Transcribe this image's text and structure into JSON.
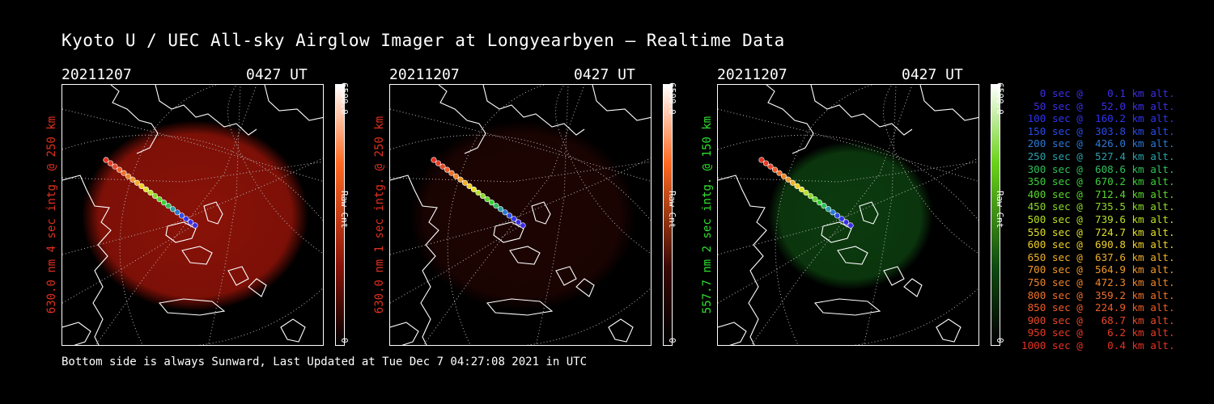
{
  "title": "Kyoto U / UEC All-sky Airglow Imager at Longyearbyen — Realtime Data",
  "footer": "Bottom side is always Sunward, Last Updated at Tue Dec  7 04:27:08 2021 in UTC",
  "panels": [
    {
      "date": "20211207",
      "time": "0427 UT",
      "ylabel": "630.0 nm 4 sec intg. @ 250 km",
      "ylabel_color": "#e0301e",
      "cbar_max": "6500.0",
      "cbar_min": "0",
      "cbar_label": "Raw Cnt",
      "color": "#ff6a22",
      "glow": "#8a1208",
      "glow_intensity": 1.0
    },
    {
      "date": "20211207",
      "time": "0427 UT",
      "ylabel": "630.0 nm 1 sec intg. @ 250 km",
      "ylabel_color": "#e0301e",
      "cbar_max": "6500.0",
      "cbar_min": "0",
      "cbar_label": "Raw Cnt",
      "color": "#ff6a22",
      "glow": "#3a0805",
      "glow_intensity": 0.5
    },
    {
      "date": "20211207",
      "time": "0427 UT",
      "ylabel": "557.7 nm 2 sec intg. @ 150 km",
      "ylabel_color": "#2ee02e",
      "cbar_max": "6500.0",
      "cbar_min": "0",
      "cbar_label": "Raw Cnt",
      "color": "#6bd21a",
      "glow": "#0f4a12",
      "glow_intensity": 0.8
    }
  ],
  "legend": [
    {
      "text": "   0 sec @    0.1 km alt.",
      "color": "#3b2ee8"
    },
    {
      "text": "  50 sec @   52.0 km alt.",
      "color": "#3b2ee8"
    },
    {
      "text": " 100 sec @  160.2 km alt.",
      "color": "#2f33f0"
    },
    {
      "text": " 150 sec @  303.8 km alt.",
      "color": "#2a4ce8"
    },
    {
      "text": " 200 sec @  426.0 km alt.",
      "color": "#2a78d8"
    },
    {
      "text": " 250 sec @  527.4 km alt.",
      "color": "#2aa0a8"
    },
    {
      "text": " 300 sec @  608.6 km alt.",
      "color": "#2ec05a"
    },
    {
      "text": " 350 sec @  670.2 km alt.",
      "color": "#3ad03a"
    },
    {
      "text": " 400 sec @  712.4 km alt.",
      "color": "#5ad82c"
    },
    {
      "text": " 450 sec @  735.5 km alt.",
      "color": "#8ad828"
    },
    {
      "text": " 500 sec @  739.6 km alt.",
      "color": "#b8e028"
    },
    {
      "text": " 550 sec @  724.7 km alt.",
      "color": "#e0e028"
    },
    {
      "text": " 600 sec @  690.8 km alt.",
      "color": "#f0d028"
    },
    {
      "text": " 650 sec @  637.6 km alt.",
      "color": "#f0b028"
    },
    {
      "text": " 700 sec @  564.9 km alt.",
      "color": "#f09828"
    },
    {
      "text": " 750 sec @  472.3 km alt.",
      "color": "#f08428"
    },
    {
      "text": " 800 sec @  359.2 km alt.",
      "color": "#f07028"
    },
    {
      "text": " 850 sec @  224.9 km alt.",
      "color": "#f05c28"
    },
    {
      "text": " 900 sec @   68.7 km alt.",
      "color": "#e84828"
    },
    {
      "text": " 950 sec @    6.2 km alt.",
      "color": "#e83a24"
    },
    {
      "text": "1000 sec @    0.4 km alt.",
      "color": "#e83020"
    }
  ]
}
